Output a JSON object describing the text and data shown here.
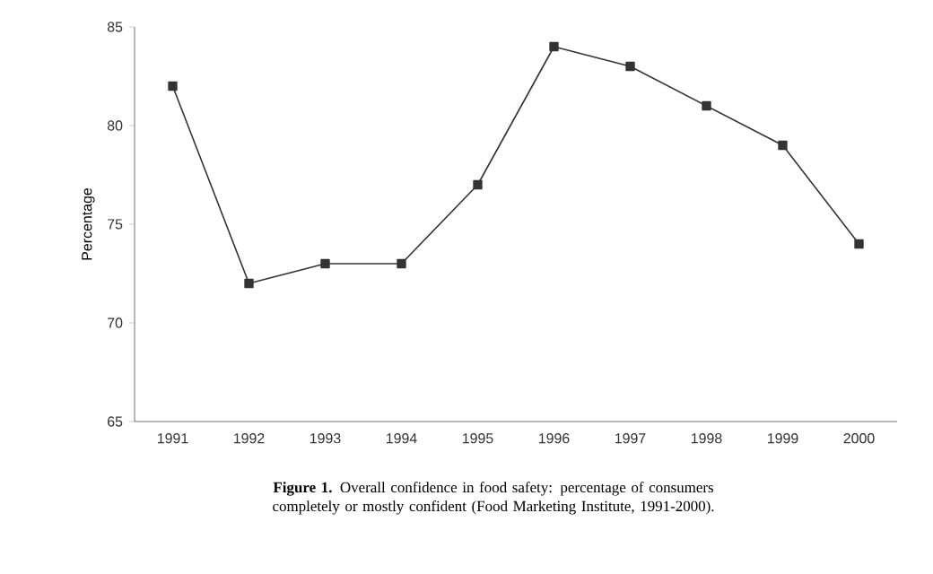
{
  "chart_data": {
    "type": "line",
    "ylabel": "Percentage",
    "categories": [
      "1991",
      "1992",
      "1993",
      "1994",
      "1995",
      "1996",
      "1997",
      "1998",
      "1999",
      "2000"
    ],
    "values": [
      82,
      72,
      73,
      73,
      77,
      84,
      83,
      81,
      79,
      74
    ],
    "color": "#333333",
    "marker": "square",
    "line_style": "solid",
    "ylim": [
      65,
      85
    ],
    "yticks": [
      65,
      70,
      75,
      80,
      85
    ],
    "annotations": [
      "**Figure 1.** Overall confidence in food safety: percentage of consumers completely or mostly confident (Food Marketing Institute, 1991-2000)."
    ]
  }
}
